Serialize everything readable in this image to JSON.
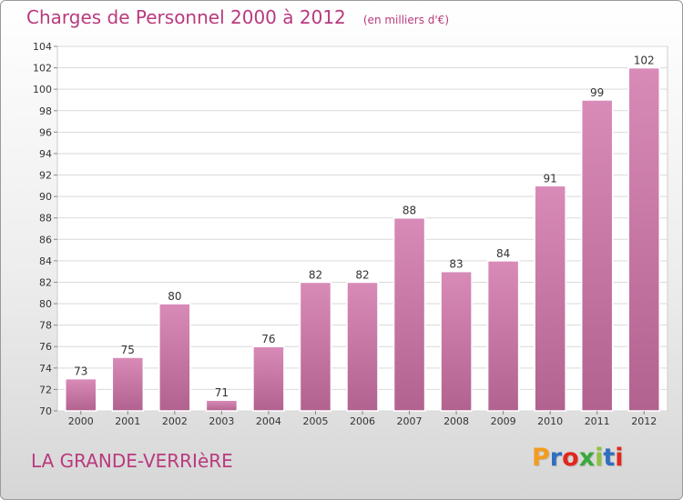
{
  "chart_data": {
    "type": "bar",
    "title": "Charges de Personnel 2000 à 2012",
    "subtitle": "(en milliers d'€)",
    "xlabel": "",
    "ylabel": "",
    "categories": [
      "2000",
      "2001",
      "2002",
      "2003",
      "2004",
      "2005",
      "2006",
      "2007",
      "2008",
      "2009",
      "2010",
      "2011",
      "2012"
    ],
    "values": [
      73,
      75,
      80,
      71,
      76,
      82,
      82,
      88,
      83,
      84,
      91,
      99,
      102
    ],
    "ylim": [
      70,
      104
    ],
    "yticks": [
      70,
      72,
      74,
      76,
      78,
      80,
      82,
      84,
      86,
      88,
      90,
      92,
      94,
      96,
      98,
      100,
      102,
      104
    ],
    "grid": "horizontal",
    "bar_color": "#d98bb8",
    "bar_color_bottom": "#b2628f"
  },
  "footer": {
    "commune": "LA GRANDE-VERRIèRE",
    "brand": "Proxiti",
    "brand_colors": [
      "#f39c1e",
      "#2f6fc0",
      "#e2271c",
      "#3aa83d",
      "#8fc33b",
      "#2f6fc0",
      "#e2271c"
    ]
  },
  "theme": {
    "accent": "#b93a7e"
  }
}
